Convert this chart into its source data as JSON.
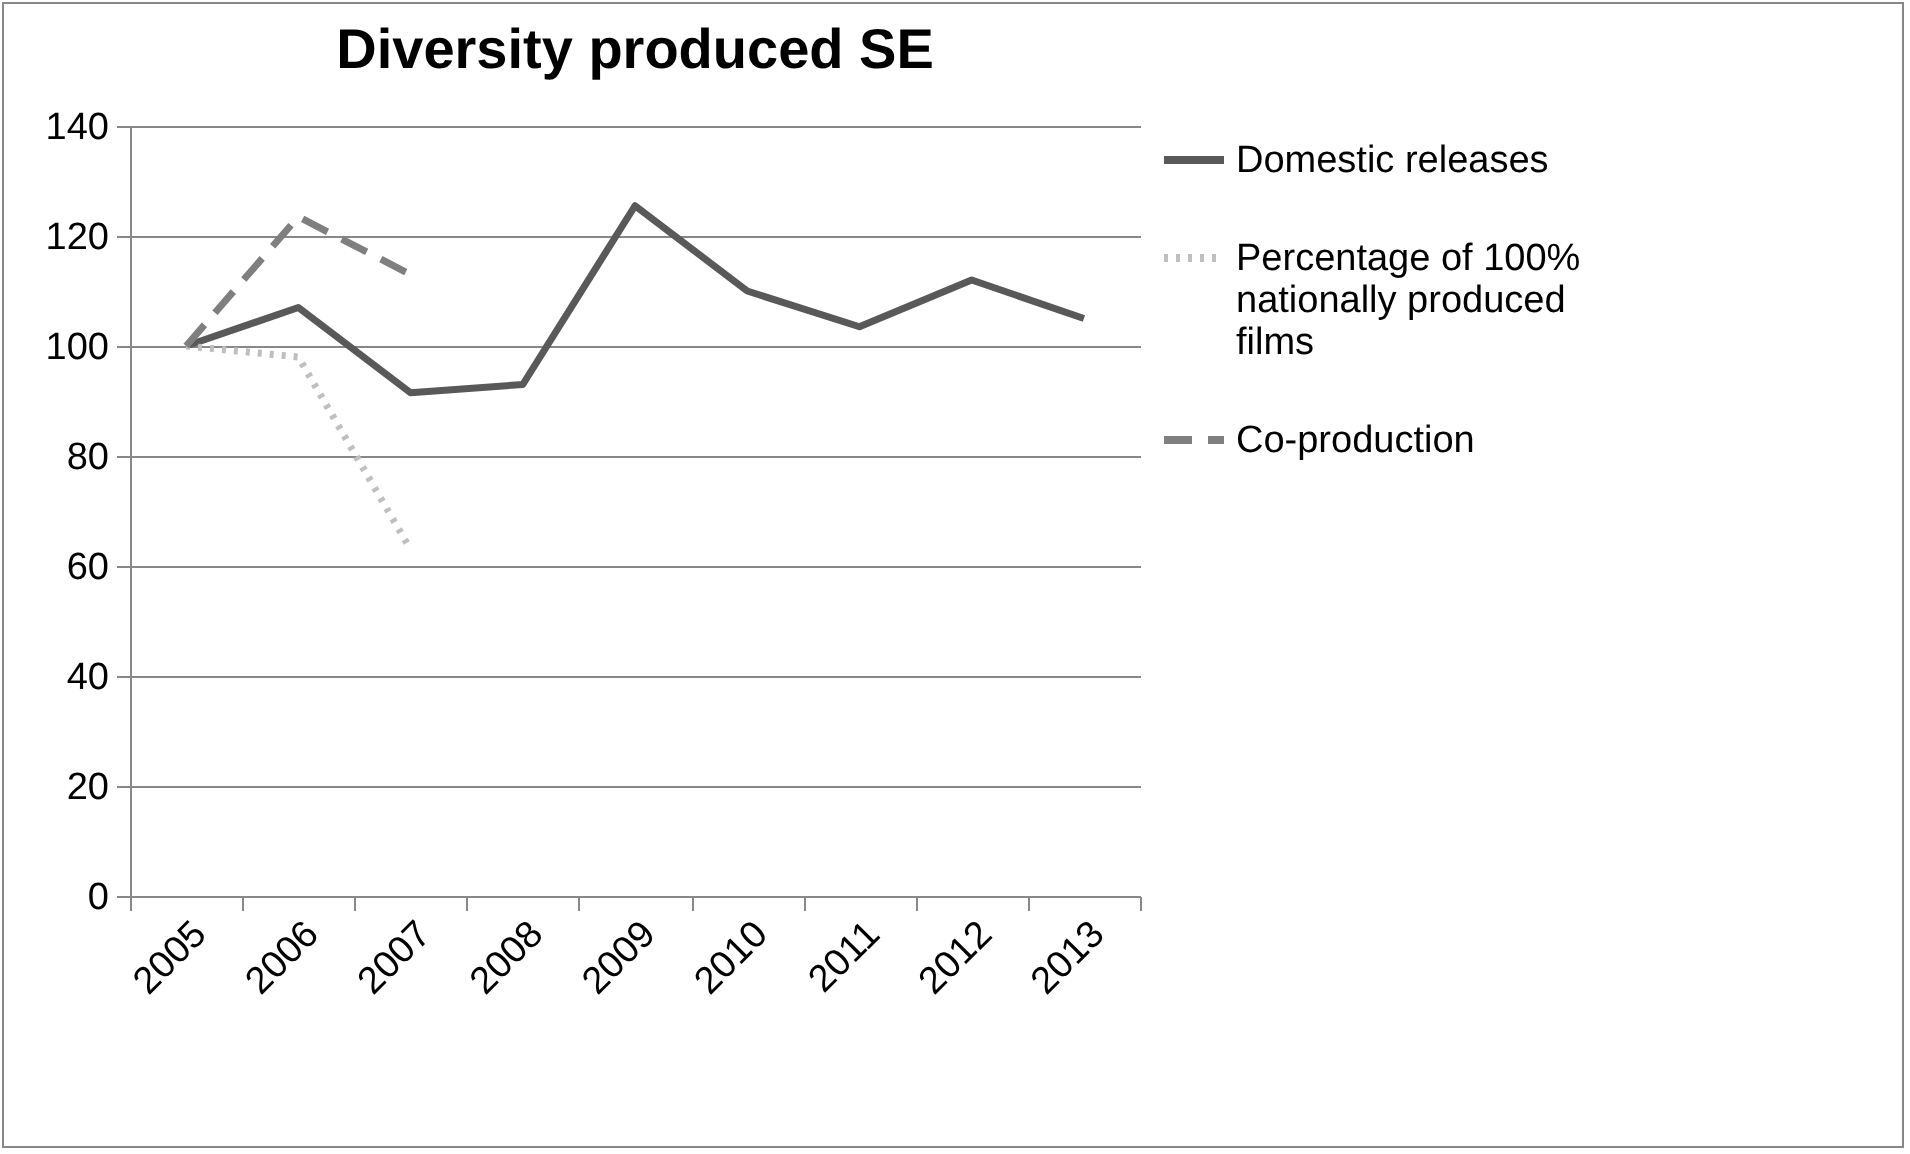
{
  "chart_data": {
    "type": "line",
    "title": "Diversity produced SE",
    "categories": [
      "2005",
      "2006",
      "2007",
      "2008",
      "2009",
      "2010",
      "2011",
      "2012",
      "2013"
    ],
    "series": [
      {
        "name": "Domestic releases",
        "color": "#595959",
        "line_style": "solid",
        "values": [
          100,
          107,
          91.5,
          93,
          125.5,
          110,
          103.5,
          112,
          105
        ]
      },
      {
        "name": "Percentage of 100% nationally produced films",
        "color": "#bfbfbf",
        "line_style": "dotted",
        "values": [
          100,
          98,
          63,
          null,
          null,
          null,
          null,
          null,
          null
        ]
      },
      {
        "name": "Co-production",
        "color": "#7f7f7f",
        "line_style": "dashed",
        "values": [
          100,
          123.5,
          113,
          null,
          null,
          null,
          null,
          null,
          null
        ]
      }
    ],
    "ylim": [
      0,
      140
    ],
    "yticks": [
      0,
      20,
      40,
      60,
      80,
      100,
      120,
      140
    ],
    "grid": "y",
    "legend": "right",
    "marker": "none"
  }
}
